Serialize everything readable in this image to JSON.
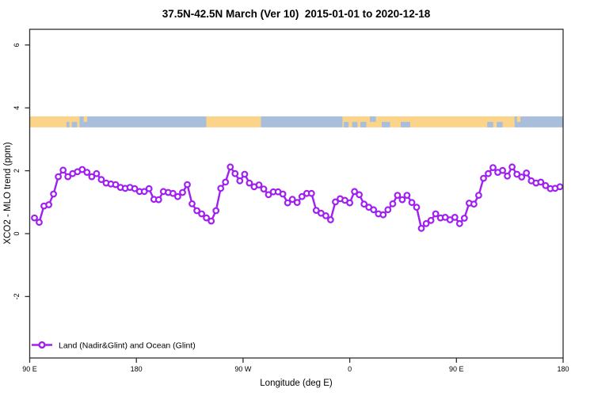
{
  "title": "37.5N-42.5N March (Ver 10)  2015-01-01 to 2020-12-18",
  "legend": {
    "label": "Land (Nadir&Glint) and Ocean (Glint)"
  },
  "colors": {
    "series_line": "#A020F0",
    "marker_fill": "#FFFFFF",
    "land": "#FBD489",
    "ocean": "#A8BEDB",
    "axis": "#2E2E2E",
    "text": "#000000"
  },
  "chart_data": {
    "type": "line",
    "title": "37.5N-42.5N March (Ver 10)  2015-01-01 to 2020-12-18",
    "xlabel": "Longitude (deg E)",
    "ylabel": "XCO2 - MLO trend (ppm)",
    "legend_position": "bottom-left",
    "grid": false,
    "x_axis_span_deg": 450,
    "x_axis_note": "longitude axis starts at 90E and wraps eastward through 180, 90W, 0, 90E to 180",
    "x_ticks": [
      {
        "deg": 0,
        "label": "90 E"
      },
      {
        "deg": 90,
        "label": "180"
      },
      {
        "deg": 180,
        "label": "90 W"
      },
      {
        "deg": 270,
        "label": "0"
      },
      {
        "deg": 360,
        "label": "90 E"
      },
      {
        "deg": 450,
        "label": "180"
      }
    ],
    "y_ticks": [
      6,
      4,
      2,
      0,
      -2
    ],
    "ylim": [
      -3.95,
      6.5
    ],
    "series": [
      {
        "name": "Land (Nadir&Glint) and Ocean (Glint)",
        "color": "#A020F0",
        "marker": "open-circle",
        "x_start_deg": 4.0,
        "x_step_deg": 4.03,
        "values": [
          0.5,
          0.36,
          0.88,
          0.92,
          1.26,
          1.81,
          2.02,
          1.81,
          1.91,
          1.97,
          2.04,
          1.95,
          1.81,
          1.91,
          1.72,
          1.61,
          1.58,
          1.56,
          1.47,
          1.44,
          1.47,
          1.43,
          1.34,
          1.34,
          1.43,
          1.09,
          1.08,
          1.34,
          1.31,
          1.28,
          1.18,
          1.31,
          1.56,
          0.95,
          0.73,
          0.63,
          0.5,
          0.4,
          0.73,
          1.44,
          1.64,
          2.12,
          1.91,
          1.68,
          1.89,
          1.61,
          1.49,
          1.55,
          1.42,
          1.24,
          1.33,
          1.33,
          1.26,
          0.98,
          1.09,
          0.99,
          1.18,
          1.28,
          1.28,
          0.74,
          0.65,
          0.57,
          0.44,
          1.01,
          1.11,
          1.06,
          0.98,
          1.34,
          1.24,
          0.94,
          0.84,
          0.76,
          0.63,
          0.6,
          0.76,
          0.95,
          1.22,
          1.08,
          1.22,
          0.99,
          0.84,
          0.17,
          0.32,
          0.42,
          0.63,
          0.5,
          0.52,
          0.44,
          0.52,
          0.32,
          0.49,
          0.97,
          0.94,
          1.22,
          1.76,
          1.91,
          2.1,
          1.95,
          2.01,
          1.83,
          2.12,
          1.89,
          1.8,
          1.93,
          1.68,
          1.61,
          1.64,
          1.53,
          1.43,
          1.44,
          1.49
        ]
      }
    ],
    "map_band": {
      "description": "land/ocean strip for latitude band 37.5N-42.5N",
      "ppm_top": 3.73,
      "ppm_bottom": 3.38,
      "base_segments": [
        {
          "from": 0,
          "to": 42,
          "type": "land"
        },
        {
          "from": 42,
          "to": 149,
          "type": "ocean"
        },
        {
          "from": 149,
          "to": 195,
          "type": "land"
        },
        {
          "from": 195,
          "to": 264,
          "type": "ocean"
        },
        {
          "from": 264,
          "to": 409,
          "type": "land"
        },
        {
          "from": 409,
          "to": 450,
          "type": "ocean"
        }
      ],
      "patches": [
        {
          "from": 31,
          "to": 33.5,
          "type": "ocean",
          "part": "bottom"
        },
        {
          "from": 35.5,
          "to": 40,
          "type": "ocean",
          "part": "bottom"
        },
        {
          "from": 45.5,
          "to": 48.5,
          "type": "land",
          "part": "top"
        },
        {
          "from": 265,
          "to": 269,
          "type": "ocean",
          "part": "bottom"
        },
        {
          "from": 272,
          "to": 276.5,
          "type": "ocean",
          "part": "bottom"
        },
        {
          "from": 279,
          "to": 284,
          "type": "ocean",
          "part": "bottom"
        },
        {
          "from": 287,
          "to": 292,
          "type": "ocean",
          "part": "top"
        },
        {
          "from": 297,
          "to": 304,
          "type": "ocean",
          "part": "bottom"
        },
        {
          "from": 313,
          "to": 321,
          "type": "ocean",
          "part": "bottom"
        },
        {
          "from": 386,
          "to": 391,
          "type": "ocean",
          "part": "bottom"
        },
        {
          "from": 394,
          "to": 399,
          "type": "ocean",
          "part": "bottom"
        },
        {
          "from": 411,
          "to": 414,
          "type": "land",
          "part": "top"
        }
      ]
    }
  }
}
